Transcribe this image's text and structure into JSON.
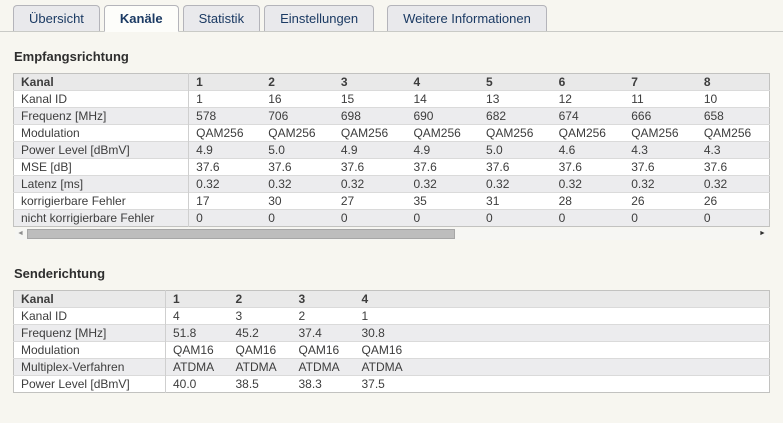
{
  "tabs": [
    {
      "label": "Übersicht",
      "active": false
    },
    {
      "label": "Kanäle",
      "active": true
    },
    {
      "label": "Statistik",
      "active": false
    },
    {
      "label": "Einstellungen",
      "active": false
    },
    {
      "label": "Weitere Informationen",
      "active": false
    }
  ],
  "empfang": {
    "title": "Empfangsrichtung",
    "header": {
      "label": "Kanal",
      "values": [
        "1",
        "2",
        "3",
        "4",
        "5",
        "6",
        "7",
        "8"
      ]
    },
    "rows": [
      {
        "label": "Kanal ID",
        "values": [
          "1",
          "16",
          "15",
          "14",
          "13",
          "12",
          "11",
          "10"
        ]
      },
      {
        "label": "Frequenz [MHz]",
        "values": [
          "578",
          "706",
          "698",
          "690",
          "682",
          "674",
          "666",
          "658"
        ]
      },
      {
        "label": "Modulation",
        "values": [
          "QAM256",
          "QAM256",
          "QAM256",
          "QAM256",
          "QAM256",
          "QAM256",
          "QAM256",
          "QAM256"
        ]
      },
      {
        "label": "Power Level [dBmV]",
        "values": [
          "4.9",
          "5.0",
          "4.9",
          "4.9",
          "5.0",
          "4.6",
          "4.3",
          "4.3"
        ]
      },
      {
        "label": "MSE [dB]",
        "values": [
          "37.6",
          "37.6",
          "37.6",
          "37.6",
          "37.6",
          "37.6",
          "37.6",
          "37.6"
        ]
      },
      {
        "label": "Latenz [ms]",
        "values": [
          "0.32",
          "0.32",
          "0.32",
          "0.32",
          "0.32",
          "0.32",
          "0.32",
          "0.32"
        ]
      },
      {
        "label": "korrigierbare Fehler",
        "values": [
          "17",
          "30",
          "27",
          "35",
          "31",
          "28",
          "26",
          "26"
        ]
      },
      {
        "label": "nicht korrigierbare Fehler",
        "values": [
          "0",
          "0",
          "0",
          "0",
          "0",
          "0",
          "0",
          "0"
        ]
      }
    ]
  },
  "sende": {
    "title": "Senderichtung",
    "filler": true,
    "header": {
      "label": "Kanal",
      "values": [
        "1",
        "2",
        "3",
        "4"
      ]
    },
    "rows": [
      {
        "label": "Kanal ID",
        "values": [
          "4",
          "3",
          "2",
          "1"
        ]
      },
      {
        "label": "Frequenz [MHz]",
        "values": [
          "51.8",
          "45.2",
          "37.4",
          "30.8"
        ]
      },
      {
        "label": "Modulation",
        "values": [
          "QAM16",
          "QAM16",
          "QAM16",
          "QAM16"
        ]
      },
      {
        "label": "Multiplex-Verfahren",
        "values": [
          "ATDMA",
          "ATDMA",
          "ATDMA",
          "ATDMA"
        ]
      },
      {
        "label": "Power Level [dBmV]",
        "values": [
          "40.0",
          "38.5",
          "38.3",
          "37.5"
        ]
      }
    ]
  },
  "scrollbar": {
    "left_arrow": "◄",
    "right_arrow": "►"
  },
  "colors": {
    "page_bg": "#f7f6f0",
    "tab_bg": "#e9e9ec",
    "tab_active_bg": "#fdfdfa",
    "tab_border": "#b4b4ba",
    "tab_text": "#1b3a63",
    "tabline": "#c9cac6",
    "table_border": "#c2c2c0",
    "header_row_bg": "#e9e9e9",
    "row_stripe": "#ececee",
    "row_border": "#dadada",
    "text": "#3d3d3d",
    "scroll_thumb": "#bdbdbd"
  }
}
